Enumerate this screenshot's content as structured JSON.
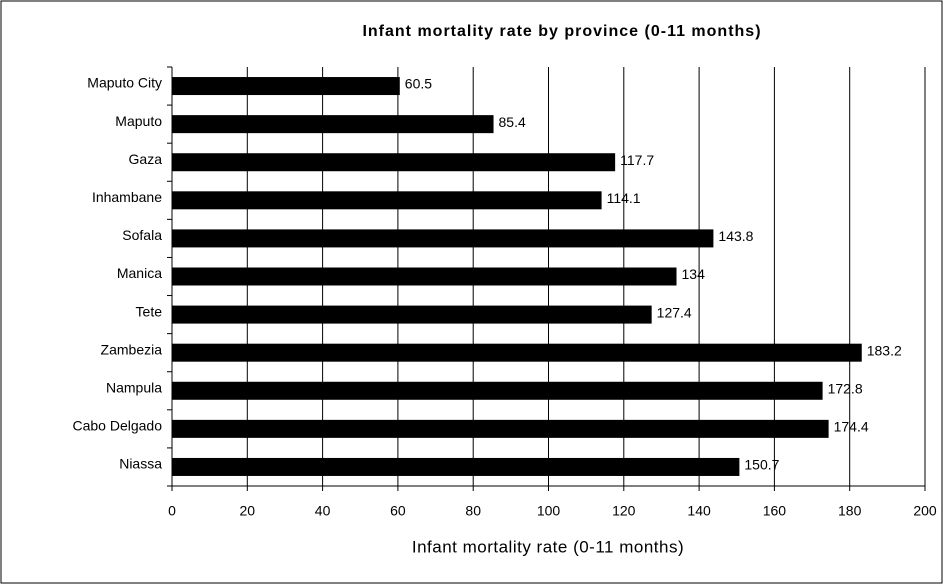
{
  "chart_data": {
    "type": "barh",
    "title": "Infant mortality rate by province (0-11 months)",
    "x_label": "Infant mortality rate (0-11 months)",
    "categories": [
      "Maputo City",
      "Maputo",
      "Gaza",
      "Inhambane",
      "Sofala",
      "Manica",
      "Tete",
      "Zambezia",
      "Nampula",
      "Cabo Delgado",
      "Niassa"
    ],
    "values": [
      60.5,
      85.4,
      117.7,
      114.1,
      143.8,
      134,
      127.4,
      183.2,
      172.8,
      174.4,
      150.7
    ],
    "color": "#000000",
    "xlim": [
      0,
      200
    ],
    "xticks": [
      0,
      20,
      40,
      60,
      80,
      100,
      120,
      140,
      160,
      180,
      200
    ],
    "grid": true
  }
}
